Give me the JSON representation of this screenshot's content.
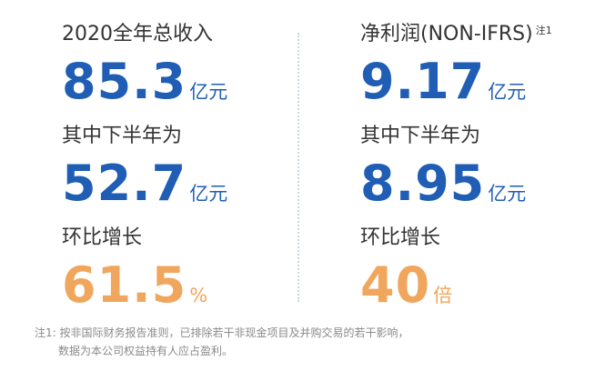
{
  "columns": [
    {
      "items": [
        {
          "label": "2020全年总收入",
          "value": "85.3",
          "unit": "亿元",
          "color": "#1f5eb4"
        },
        {
          "label": "其中下半年为",
          "value": "52.7",
          "unit": "亿元",
          "color": "#1f5eb4"
        },
        {
          "label": "环比增长",
          "value": "61.5",
          "unit": "%",
          "color": "#f0a65c"
        }
      ]
    },
    {
      "items": [
        {
          "label": "净利润(NON-IFRS)",
          "note": "注1",
          "value": "9.17",
          "unit": "亿元",
          "color": "#1f5eb4"
        },
        {
          "label": "其中下半年为",
          "value": "8.95",
          "unit": "亿元",
          "color": "#1f5eb4"
        },
        {
          "label": "环比增长",
          "value": "40",
          "unit": "倍",
          "color": "#f0a65c"
        }
      ]
    }
  ],
  "footnote": {
    "marker": "注1:",
    "lines": [
      "按非国际财务报告准则，已排除若干非现金项目及并购交易的若干影响，",
      "数据为本公司权益持有人应占盈利。"
    ]
  }
}
